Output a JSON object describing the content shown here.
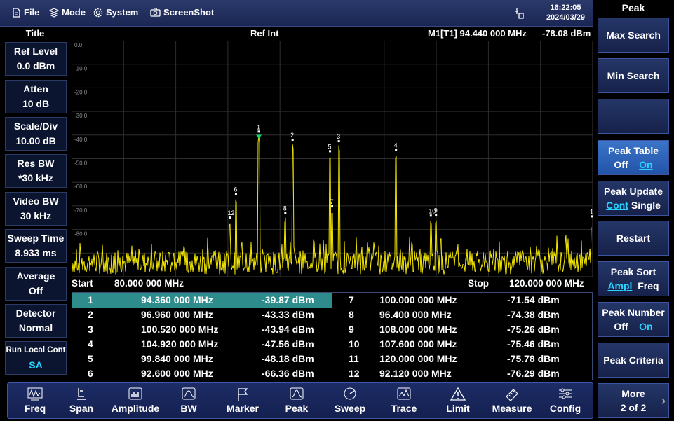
{
  "menu": {
    "file": "File",
    "mode": "Mode",
    "system": "System",
    "screenshot": "ScreenShot"
  },
  "clock": {
    "time": "16:22:05",
    "date": "2024/03/29"
  },
  "left": {
    "title": "Title",
    "items": [
      {
        "label": "Ref Level",
        "value": "0.0 dBm"
      },
      {
        "label": "Atten",
        "value": "10 dB"
      },
      {
        "label": "Scale/Div",
        "value": "10.00 dB"
      },
      {
        "label": "Res BW",
        "value": "*30 kHz"
      },
      {
        "label": "Video BW",
        "value": "30 kHz"
      },
      {
        "label": "Sweep Time",
        "value": "8.933 ms"
      },
      {
        "label": "Average",
        "value": "Off"
      },
      {
        "label": "Detector",
        "value": "Normal"
      },
      {
        "label": "Run Local Cont",
        "value": "SA"
      }
    ]
  },
  "header": {
    "ref": "Ref Int",
    "marker": "M1[T1] 94.440 000 MHz",
    "marker_level": "-78.08 dBm"
  },
  "axis": {
    "ticks": [
      "0.0",
      "-10.0",
      "-20.0",
      "-30.0",
      "-40.0",
      "-50.0",
      "-60.0",
      "-70.0",
      "-80.0"
    ],
    "start_label": "Start",
    "start": "80.000 000 MHz",
    "stop_label": "Stop",
    "stop": "120.000 000 MHz"
  },
  "chart_data": {
    "type": "line",
    "x_start_mhz": 80.0,
    "x_stop_mhz": 120.0,
    "ylim": [
      -100,
      0
    ],
    "noise_floor_dbm": -92,
    "peaks": [
      {
        "n": "1",
        "freq_mhz": 94.36,
        "level_dbm": -39.87
      },
      {
        "n": "2",
        "freq_mhz": 96.96,
        "level_dbm": -43.33
      },
      {
        "n": "3",
        "freq_mhz": 100.52,
        "level_dbm": -43.94
      },
      {
        "n": "4",
        "freq_mhz": 104.92,
        "level_dbm": -47.56
      },
      {
        "n": "5",
        "freq_mhz": 99.84,
        "level_dbm": -48.18
      },
      {
        "n": "6",
        "freq_mhz": 92.6,
        "level_dbm": -66.36
      },
      {
        "n": "7",
        "freq_mhz": 100.0,
        "level_dbm": -71.54
      },
      {
        "n": "8",
        "freq_mhz": 96.4,
        "level_dbm": -74.38
      },
      {
        "n": "9",
        "freq_mhz": 108.0,
        "level_dbm": -75.26
      },
      {
        "n": "10",
        "freq_mhz": 107.6,
        "level_dbm": -75.46
      },
      {
        "n": "11",
        "freq_mhz": 120.0,
        "level_dbm": -75.78
      },
      {
        "n": "12",
        "freq_mhz": 92.12,
        "level_dbm": -76.29
      }
    ],
    "trace_color": "#f2e600"
  },
  "peak_table": [
    {
      "n": "1",
      "freq": "94.360 000 MHz",
      "level": "-39.87 dBm",
      "n2": "7",
      "freq2": "100.000 000 MHz",
      "level2": "-71.54 dBm"
    },
    {
      "n": "2",
      "freq": "96.960 000 MHz",
      "level": "-43.33 dBm",
      "n2": "8",
      "freq2": "96.400 000 MHz",
      "level2": "-74.38 dBm"
    },
    {
      "n": "3",
      "freq": "100.520 000 MHz",
      "level": "-43.94 dBm",
      "n2": "9",
      "freq2": "108.000 000 MHz",
      "level2": "-75.26 dBm"
    },
    {
      "n": "4",
      "freq": "104.920 000 MHz",
      "level": "-47.56 dBm",
      "n2": "10",
      "freq2": "107.600 000 MHz",
      "level2": "-75.46 dBm"
    },
    {
      "n": "5",
      "freq": "99.840 000 MHz",
      "level": "-48.18 dBm",
      "n2": "11",
      "freq2": "120.000 000 MHz",
      "level2": "-75.78 dBm"
    },
    {
      "n": "6",
      "freq": "92.600 000 MHz",
      "level": "-66.36 dBm",
      "n2": "12",
      "freq2": "92.120 000 MHz",
      "level2": "-76.29 dBm"
    }
  ],
  "bottom": [
    "Freq",
    "Span",
    "Amplitude",
    "BW",
    "Marker",
    "Peak",
    "Sweep",
    "Trace",
    "Limit",
    "Measure",
    "Config"
  ],
  "right": {
    "title": "Peak",
    "max_search": "Max Search",
    "min_search": "Min Search",
    "blank": "",
    "peak_table": {
      "label": "Peak Table",
      "off": "Off",
      "on": "On"
    },
    "peak_update": {
      "label": "Peak Update",
      "cont": "Cont",
      "single": "Single"
    },
    "restart": "Restart",
    "peak_sort": {
      "label": "Peak Sort",
      "ampl": "Ampl",
      "freq": "Freq"
    },
    "peak_number": {
      "label": "Peak Number",
      "off": "Off",
      "on": "On"
    },
    "peak_criteria": "Peak Criteria",
    "more": {
      "label": "More",
      "page": "2 of 2"
    }
  }
}
